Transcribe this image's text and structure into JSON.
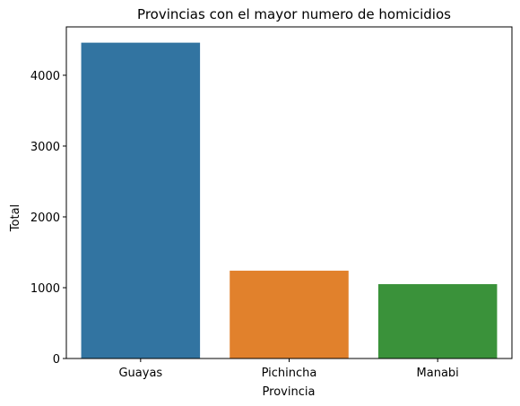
{
  "chart_data": {
    "type": "bar",
    "title": "Provincias con el mayor numero de homicidios",
    "xlabel": "Provincia",
    "ylabel": "Total",
    "categories": [
      "Guayas",
      "Pichincha",
      "Manabi"
    ],
    "values": [
      4460,
      1240,
      1050
    ],
    "colors": [
      "#3274a1",
      "#e1812c",
      "#3a923a"
    ],
    "ylim": [
      0,
      4683
    ],
    "yticks": [
      0,
      1000,
      2000,
      3000,
      4000
    ],
    "ytick_labels": [
      "0",
      "1000",
      "2000",
      "3000",
      "4000"
    ],
    "grid": false,
    "legend": "none"
  }
}
